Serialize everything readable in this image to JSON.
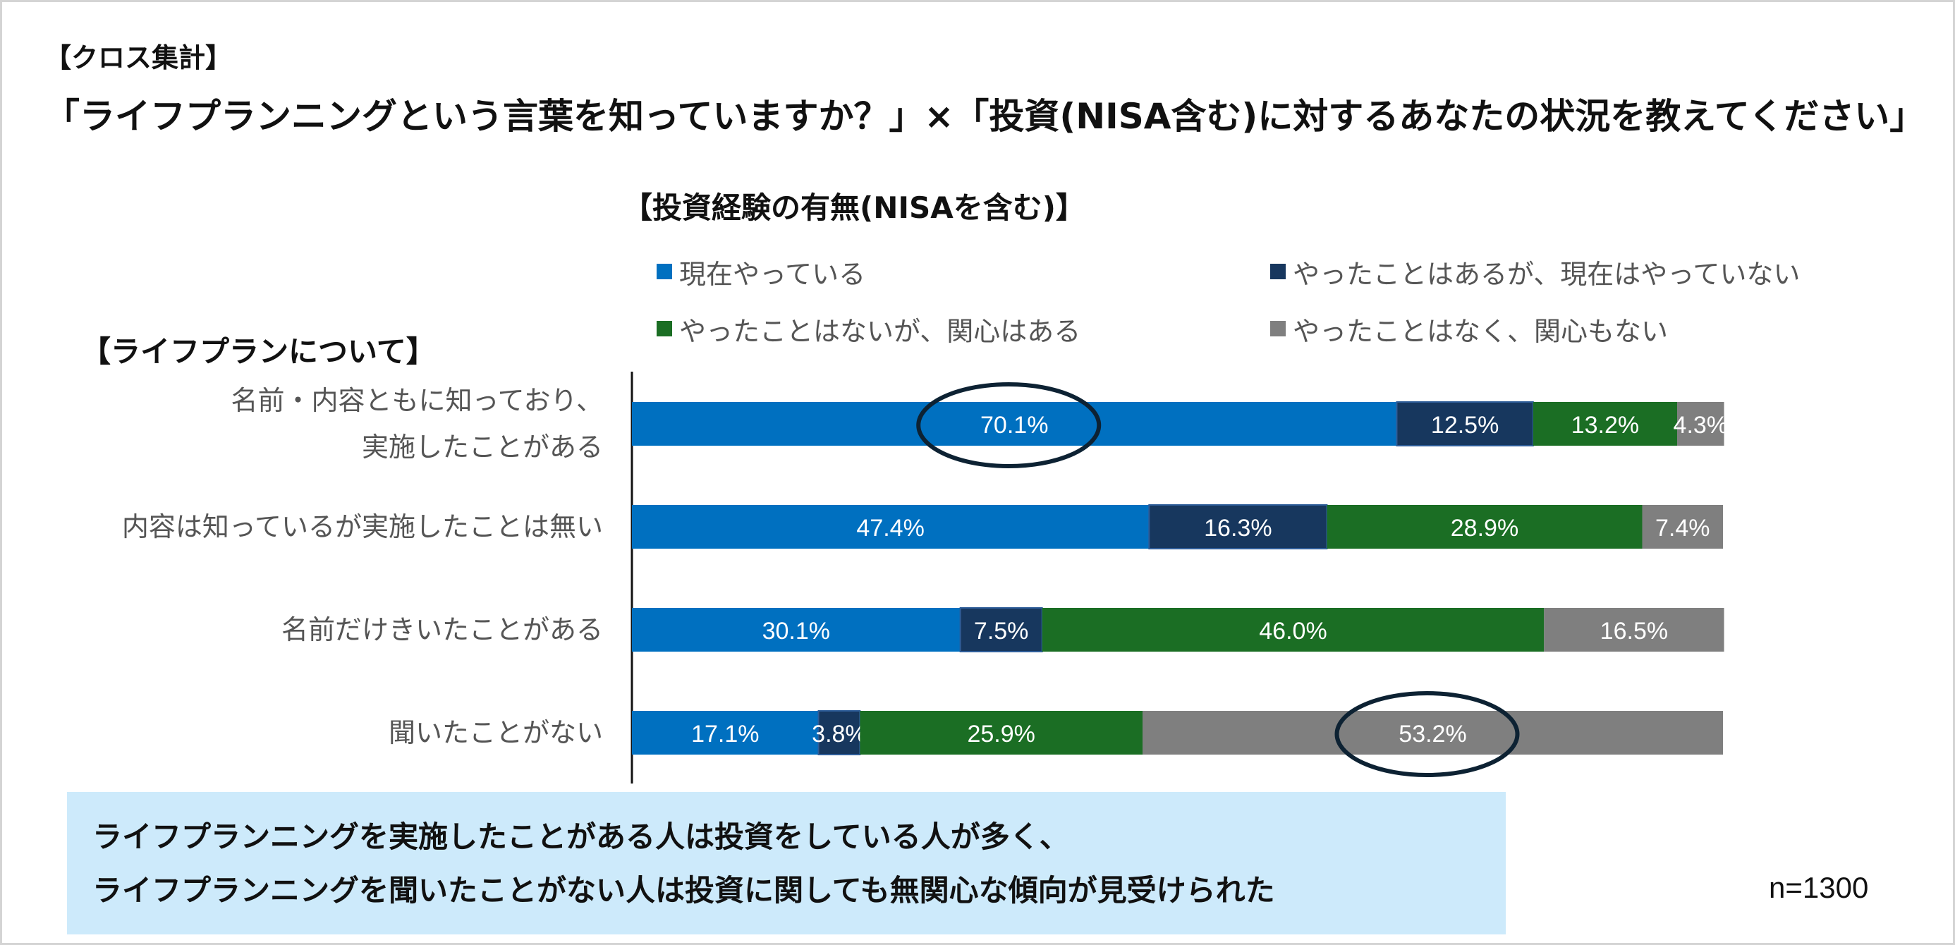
{
  "header": {
    "tag": "【クロス集計】",
    "title": "「ライフプランニングという言葉を知っていますか？」×「投資(NISA含む)に対するあなたの状況を教えてください」"
  },
  "chart_data": {
    "type": "bar",
    "orientation": "horizontal",
    "stacked": true,
    "title": "【投資経験の有無(NISAを含む)】",
    "group_title": "【ライフプランについて】",
    "legend_position": "top",
    "xlim": [
      0,
      100
    ],
    "grid": false,
    "categories": [
      [
        "名前・内容ともに知っており、",
        "実施したことがある"
      ],
      [
        "内容は知っているが実施したことは無い"
      ],
      [
        "名前だけきいたことがある"
      ],
      [
        "聞いたことがない"
      ]
    ],
    "series": [
      {
        "name": "現在やっている",
        "color": "#0070c0",
        "values": [
          70.1,
          47.4,
          30.1,
          17.1
        ],
        "labels": [
          "70.1%",
          "47.4%",
          "30.1%",
          "17.1%"
        ]
      },
      {
        "name": "やったことはあるが、現在はやっていない",
        "color": "#17375e",
        "values": [
          12.5,
          16.3,
          7.5,
          3.8
        ],
        "labels": [
          "12.5%",
          "16.3%",
          "7.5%",
          "3.8%"
        ]
      },
      {
        "name": "やったことはないが、関心はある",
        "color": "#1b6e24",
        "values": [
          13.2,
          28.9,
          46.0,
          25.9
        ],
        "labels": [
          "13.2%",
          "28.9%",
          "46.0%",
          "25.9%"
        ]
      },
      {
        "name": "やったことはなく、関心もない",
        "color": "#7f7f7f",
        "values": [
          4.3,
          7.4,
          16.5,
          53.2
        ],
        "labels": [
          "4.3%",
          "7.4%",
          "16.5%",
          "53.2%"
        ]
      }
    ],
    "annotations": [
      {
        "type": "ellipse",
        "category_index": 0,
        "series_index": 0,
        "color": "#0d2233"
      },
      {
        "type": "ellipse",
        "category_index": 3,
        "series_index": 3,
        "color": "#0d2233"
      }
    ]
  },
  "conclusion": {
    "lines": [
      "ライフプランニングを実施したことがある人は投資をしている人が多く、",
      "ライフプランニングを聞いたことがない人は投資に関しても無関心な傾向が見受けられた"
    ]
  },
  "footer": {
    "sample_size": "n=1300"
  }
}
